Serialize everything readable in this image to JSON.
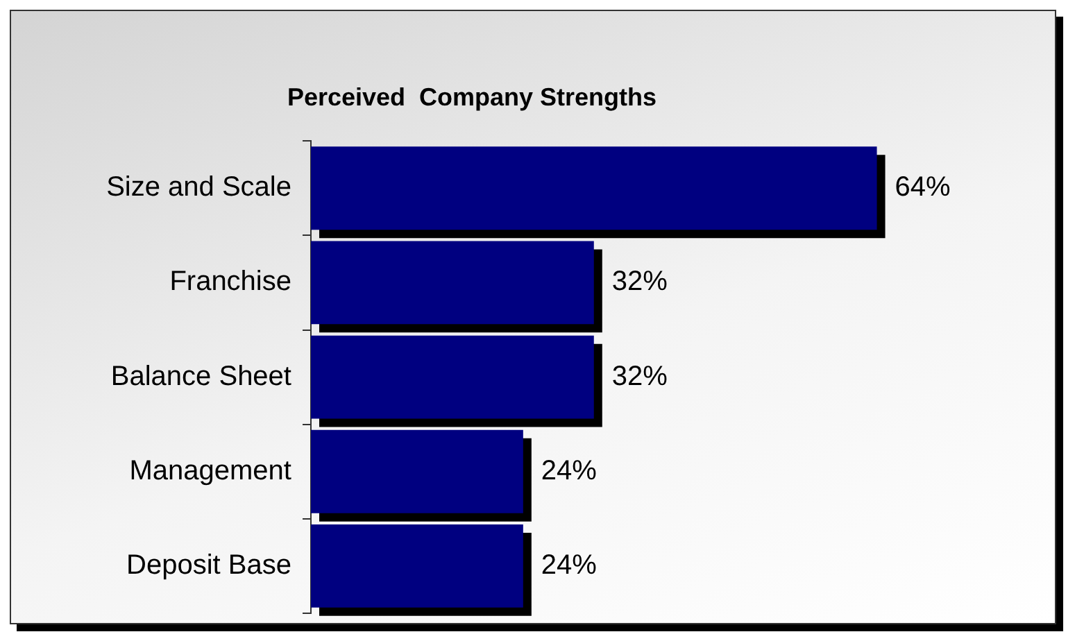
{
  "chart_data": {
    "type": "bar",
    "orientation": "horizontal",
    "title": "Perceived  Company Strengths",
    "categories": [
      "Size and Scale",
      "Franchise",
      "Balance Sheet",
      "Management",
      "Deposit Base"
    ],
    "values": [
      64,
      32,
      32,
      24,
      24
    ],
    "color": "#000080",
    "value_labels": [
      "64%",
      "32%",
      "32%",
      "24%",
      "24%"
    ],
    "grid": false,
    "legend": false
  }
}
